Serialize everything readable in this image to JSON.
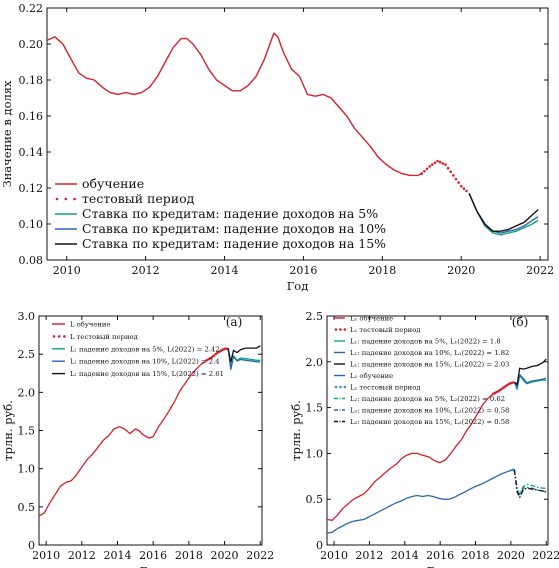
{
  "colors": {
    "red": "#d6202c",
    "green": "#10a37f",
    "blue": "#2a67b0",
    "black": "#111111",
    "lblue": "#3b8fd6"
  },
  "chart_data": [
    {
      "type": "line",
      "xlabel": "Год",
      "ylabel": "Значение в долях",
      "xlim": [
        2009.5,
        2022.2
      ],
      "ylim": [
        0.08,
        0.22
      ],
      "xticks": [
        "2010",
        "2012",
        "2014",
        "2016",
        "2018",
        "2020",
        "2022"
      ],
      "yticks": [
        "0.08",
        "0.10",
        "0.12",
        "0.14",
        "0.16",
        "0.18",
        "0.20",
        "0.22"
      ],
      "legend_position": "bottom-left",
      "series": [
        {
          "name": "обучение",
          "color": "red",
          "style": "solid",
          "x": [
            2009.5,
            2009.7,
            2009.9,
            2010.1,
            2010.3,
            2010.5,
            2010.7,
            2010.9,
            2011.1,
            2011.3,
            2011.5,
            2011.7,
            2011.9,
            2012.1,
            2012.3,
            2012.5,
            2012.7,
            2012.9,
            2013.05,
            2013.2,
            2013.4,
            2013.6,
            2013.8,
            2014.0,
            2014.2,
            2014.4,
            2014.6,
            2014.8,
            2015.0,
            2015.15,
            2015.25,
            2015.35,
            2015.5,
            2015.7,
            2015.9,
            2016.1,
            2016.3,
            2016.5,
            2016.7,
            2016.9,
            2017.1,
            2017.3,
            2017.5,
            2017.7,
            2017.9,
            2018.1,
            2018.3,
            2018.5,
            2018.7,
            2018.9,
            2019.0
          ],
          "y": [
            0.202,
            0.204,
            0.2,
            0.192,
            0.184,
            0.181,
            0.18,
            0.176,
            0.173,
            0.172,
            0.173,
            0.172,
            0.173,
            0.176,
            0.182,
            0.19,
            0.198,
            0.203,
            0.203,
            0.2,
            0.194,
            0.186,
            0.18,
            0.177,
            0.174,
            0.174,
            0.177,
            0.182,
            0.191,
            0.2,
            0.206,
            0.204,
            0.195,
            0.186,
            0.182,
            0.172,
            0.171,
            0.172,
            0.17,
            0.165,
            0.16,
            0.153,
            0.148,
            0.143,
            0.137,
            0.133,
            0.13,
            0.128,
            0.127,
            0.127,
            0.128
          ]
        },
        {
          "name": "тестовый период",
          "color": "red",
          "style": "dotted",
          "x": [
            2019.0,
            2019.2,
            2019.4,
            2019.6,
            2019.8,
            2020.0,
            2020.2
          ],
          "y": [
            0.128,
            0.132,
            0.135,
            0.133,
            0.127,
            0.121,
            0.117
          ]
        },
        {
          "name": "Ставка по кредитам: падение доходов на 5%",
          "color": "green",
          "style": "solid",
          "x": [
            2020.2,
            2020.4,
            2020.6,
            2020.8,
            2021.0,
            2021.2,
            2021.4,
            2021.6,
            2021.8,
            2021.95
          ],
          "y": [
            0.117,
            0.107,
            0.099,
            0.095,
            0.094,
            0.095,
            0.096,
            0.098,
            0.1,
            0.102
          ]
        },
        {
          "name": "Ставка по кредитам: падение доходов на 10%",
          "color": "blue",
          "style": "solid",
          "x": [
            2020.2,
            2020.4,
            2020.6,
            2020.8,
            2021.0,
            2021.2,
            2021.4,
            2021.6,
            2021.8,
            2021.95
          ],
          "y": [
            0.117,
            0.107,
            0.099,
            0.096,
            0.095,
            0.096,
            0.097,
            0.099,
            0.102,
            0.104
          ]
        },
        {
          "name": "Ставка по кредитам: падение доходов на 15%",
          "color": "black",
          "style": "solid",
          "x": [
            2020.2,
            2020.4,
            2020.6,
            2020.8,
            2021.0,
            2021.2,
            2021.4,
            2021.6,
            2021.8,
            2021.95
          ],
          "y": [
            0.117,
            0.107,
            0.1,
            0.096,
            0.096,
            0.097,
            0.099,
            0.101,
            0.105,
            0.108
          ]
        }
      ]
    },
    {
      "type": "line",
      "panel_label": "(а)",
      "xlabel": "Год",
      "ylabel": "трлн. руб.",
      "xlim": [
        2009.6,
        2022.1
      ],
      "ylim": [
        0.0,
        3.0
      ],
      "xticks": [
        "2010",
        "2012",
        "2014",
        "2016",
        "2018",
        "2020",
        "2022"
      ],
      "yticks": [
        "0",
        "0.5",
        "1.0",
        "1.5",
        "2.0",
        "2.5",
        "3.0"
      ],
      "legend_position": "top-left",
      "series": [
        {
          "name": "L обучение",
          "color": "red",
          "style": "solid",
          "x": [
            2009.6,
            2009.9,
            2010.2,
            2010.5,
            2010.8,
            2011.1,
            2011.4,
            2011.7,
            2012.0,
            2012.3,
            2012.6,
            2012.9,
            2013.2,
            2013.5,
            2013.8,
            2014.1,
            2014.4,
            2014.7,
            2015.0,
            2015.2,
            2015.4,
            2015.6,
            2015.8,
            2016.0,
            2016.3,
            2016.6,
            2016.9,
            2017.2,
            2017.5,
            2017.8,
            2018.1,
            2018.4,
            2018.7,
            2019.0
          ],
          "y": [
            0.38,
            0.42,
            0.55,
            0.66,
            0.77,
            0.82,
            0.84,
            0.92,
            1.02,
            1.12,
            1.19,
            1.28,
            1.37,
            1.43,
            1.52,
            1.55,
            1.52,
            1.46,
            1.52,
            1.5,
            1.45,
            1.42,
            1.4,
            1.42,
            1.55,
            1.65,
            1.76,
            1.88,
            2.02,
            2.12,
            2.22,
            2.3,
            2.37,
            2.42
          ]
        },
        {
          "name": "L тестовый период",
          "color": "red",
          "style": "dotted",
          "x": [
            2019.0,
            2019.3,
            2019.6,
            2019.9,
            2020.2
          ],
          "y": [
            2.42,
            2.46,
            2.52,
            2.56,
            2.58
          ]
        },
        {
          "name": "L: падение доходов на 5%, L(2022) = 2.42",
          "color": "green",
          "style": "solid",
          "x": [
            2020.2,
            2020.35,
            2020.5,
            2020.7,
            2020.9,
            2021.2,
            2021.5,
            2021.8,
            2022.0
          ],
          "y": [
            2.58,
            2.32,
            2.48,
            2.42,
            2.45,
            2.44,
            2.43,
            2.42,
            2.42
          ]
        },
        {
          "name": "L: падение доходов на 10%, L(2022) = 2.4",
          "color": "blue",
          "style": "solid",
          "x": [
            2020.2,
            2020.35,
            2020.5,
            2020.7,
            2020.9,
            2021.2,
            2021.5,
            2021.8,
            2022.0
          ],
          "y": [
            2.58,
            2.3,
            2.47,
            2.41,
            2.43,
            2.42,
            2.41,
            2.4,
            2.4
          ]
        },
        {
          "name": "L: падение доходов на 15%, L(2022) = 2.61",
          "color": "black",
          "style": "solid",
          "x": [
            2020.2,
            2020.35,
            2020.5,
            2020.7,
            2020.9,
            2021.2,
            2021.5,
            2021.8,
            2022.0
          ],
          "y": [
            2.58,
            2.4,
            2.55,
            2.52,
            2.56,
            2.58,
            2.58,
            2.58,
            2.61
          ]
        }
      ]
    },
    {
      "type": "line",
      "panel_label": "(б)",
      "xlabel": "Год",
      "ylabel": "трлн. руб.",
      "xlim": [
        2009.6,
        2022.1
      ],
      "ylim": [
        0.0,
        2.5
      ],
      "xticks": [
        "2010",
        "2012",
        "2014",
        "2016",
        "2018",
        "2020",
        "2022"
      ],
      "yticks": [
        "0",
        "0.5",
        "1.0",
        "1.5",
        "2.0",
        "2.5"
      ],
      "legend_position": "top-left",
      "series": [
        {
          "name": "L₁ обучение",
          "color": "red",
          "style": "solid",
          "x": [
            2009.6,
            2009.9,
            2010.2,
            2010.5,
            2010.8,
            2011.1,
            2011.4,
            2011.7,
            2012.0,
            2012.3,
            2012.6,
            2012.9,
            2013.2,
            2013.5,
            2013.8,
            2014.1,
            2014.4,
            2014.7,
            2015.0,
            2015.2,
            2015.4,
            2015.6,
            2015.8,
            2016.0,
            2016.3,
            2016.6,
            2016.9,
            2017.2,
            2017.5,
            2017.8,
            2018.1,
            2018.4,
            2018.7,
            2019.0
          ],
          "y": [
            0.28,
            0.27,
            0.33,
            0.4,
            0.45,
            0.5,
            0.53,
            0.56,
            0.62,
            0.69,
            0.74,
            0.79,
            0.84,
            0.88,
            0.94,
            0.98,
            1.0,
            1.0,
            0.98,
            0.97,
            0.96,
            0.93,
            0.91,
            0.9,
            0.93,
            1.0,
            1.08,
            1.15,
            1.25,
            1.33,
            1.43,
            1.53,
            1.6,
            1.65
          ]
        },
        {
          "name": "L₁ тестовый период",
          "color": "red",
          "style": "dotted",
          "x": [
            2019.0,
            2019.3,
            2019.6,
            2019.9,
            2020.2
          ],
          "y": [
            1.65,
            1.68,
            1.72,
            1.76,
            1.78
          ]
        },
        {
          "name": "L₁: падение доходов на 5%, L₁(2022) = 1.8",
          "color": "green",
          "style": "solid",
          "x": [
            2020.2,
            2020.35,
            2020.5,
            2020.7,
            2020.9,
            2021.2,
            2021.5,
            2021.8,
            2022.0
          ],
          "y": [
            1.78,
            1.7,
            1.85,
            1.8,
            1.76,
            1.78,
            1.79,
            1.8,
            1.8
          ]
        },
        {
          "name": "L₁: падение доходов на 10%, L₁(2022) = 1.82",
          "color": "blue",
          "style": "solid",
          "x": [
            2020.2,
            2020.35,
            2020.5,
            2020.7,
            2020.9,
            2021.2,
            2021.5,
            2021.8,
            2022.0
          ],
          "y": [
            1.78,
            1.72,
            1.86,
            1.82,
            1.77,
            1.79,
            1.8,
            1.81,
            1.82
          ]
        },
        {
          "name": "L₁: падение доходов на 15%, L₁(2022) = 2.03",
          "color": "black",
          "style": "solid",
          "x": [
            2020.2,
            2020.35,
            2020.5,
            2020.7,
            2020.9,
            2021.2,
            2021.5,
            2021.8,
            2022.0
          ],
          "y": [
            1.78,
            1.75,
            1.93,
            1.92,
            1.93,
            1.95,
            1.96,
            1.99,
            2.03
          ]
        },
        {
          "name": "L₂ обучение",
          "color": "blue",
          "style": "solid",
          "x": [
            2009.6,
            2009.9,
            2010.2,
            2010.5,
            2010.8,
            2011.1,
            2011.4,
            2011.7,
            2012.0,
            2012.3,
            2012.6,
            2012.9,
            2013.2,
            2013.5,
            2013.8,
            2014.1,
            2014.4,
            2014.7,
            2015.0,
            2015.3,
            2015.6,
            2015.9,
            2016.2,
            2016.5,
            2016.8,
            2017.1,
            2017.4,
            2017.7,
            2018.0,
            2018.3,
            2018.6,
            2018.9,
            2019.2,
            2019.5,
            2019.8,
            2020.1
          ],
          "y": [
            0.13,
            0.14,
            0.18,
            0.21,
            0.24,
            0.26,
            0.27,
            0.28,
            0.31,
            0.34,
            0.37,
            0.4,
            0.43,
            0.46,
            0.48,
            0.51,
            0.53,
            0.54,
            0.53,
            0.54,
            0.53,
            0.51,
            0.5,
            0.5,
            0.52,
            0.55,
            0.58,
            0.61,
            0.64,
            0.66,
            0.69,
            0.72,
            0.75,
            0.78,
            0.8,
            0.82
          ]
        },
        {
          "name": "L₂ тестовый период",
          "color": "lblue",
          "style": "dotted",
          "x": [
            2020.1,
            2020.2
          ],
          "y": [
            0.82,
            0.82
          ]
        },
        {
          "name": "L₂: падение доходов на 5%, L₂(2022) = 0.62",
          "color": "green",
          "style": "dashdot",
          "x": [
            2020.2,
            2020.35,
            2020.5,
            2020.7,
            2020.9,
            2021.2,
            2021.5,
            2021.8,
            2022.0
          ],
          "y": [
            0.82,
            0.62,
            0.55,
            0.64,
            0.66,
            0.65,
            0.63,
            0.62,
            0.62
          ]
        },
        {
          "name": "L₂: падение доходов на 10%, L₂(2022) = 0.58",
          "color": "blue",
          "style": "dashdot",
          "x": [
            2020.2,
            2020.35,
            2020.5,
            2020.7,
            2020.9,
            2021.2,
            2021.5,
            2021.8,
            2022.0
          ],
          "y": [
            0.82,
            0.6,
            0.54,
            0.62,
            0.63,
            0.62,
            0.6,
            0.59,
            0.58
          ]
        },
        {
          "name": "L₂: падение доходов на 15%, L₂(2022) = 0.58",
          "color": "black",
          "style": "dashdot",
          "x": [
            2020.2,
            2020.35,
            2020.5,
            2020.7,
            2020.9,
            2021.2,
            2021.5,
            2021.8,
            2022.0
          ],
          "y": [
            0.82,
            0.58,
            0.52,
            0.6,
            0.62,
            0.61,
            0.6,
            0.59,
            0.58
          ]
        }
      ]
    }
  ]
}
